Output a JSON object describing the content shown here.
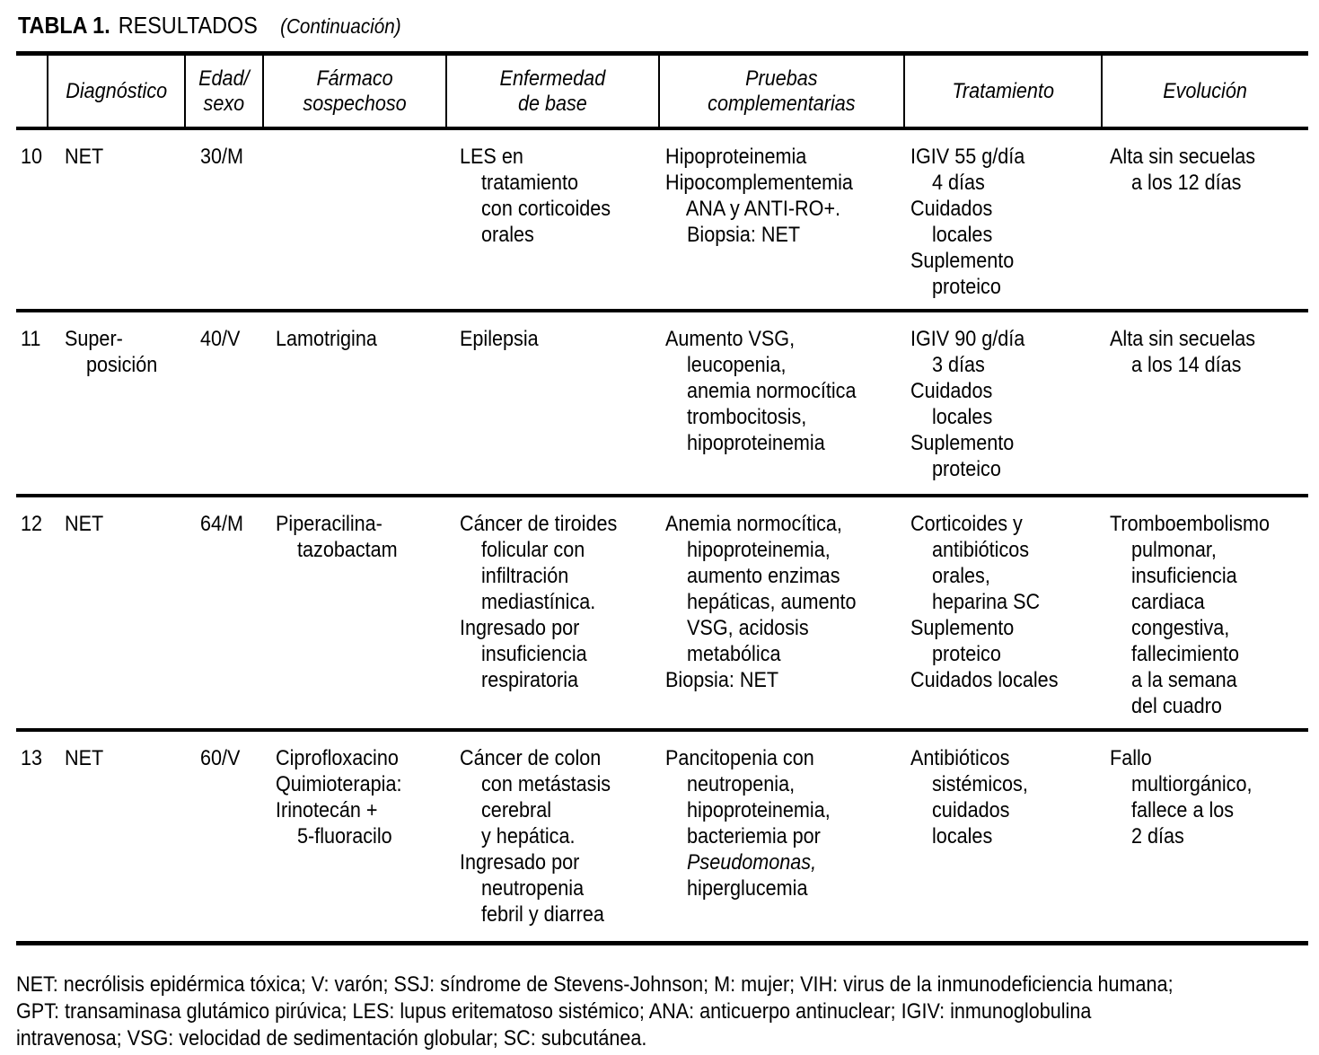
{
  "title": {
    "label_bold": "TABLA 1.",
    "label_regular": "RESULTADOS",
    "label_italic": "(Continuación)"
  },
  "table": {
    "columns": [
      "",
      "Diagnóstico",
      "Edad/\nsexo",
      "Fármaco\nsospechoso",
      "Enfermedad\nde base",
      "Pruebas\ncomplementarias",
      "Tratamiento",
      "Evolución"
    ],
    "rows": [
      {
        "num": "10",
        "diagnostico": [
          "NET"
        ],
        "edad_sexo": [
          "30/M"
        ],
        "farmaco": [],
        "enfermedad": [
          "LES en",
          "    tratamiento",
          "    con corticoides",
          "    orales"
        ],
        "pruebas": [
          "Hipoproteinemia",
          "Hipocomplementemia",
          "    ANA y ANTI-RO+.",
          "    Biopsia: NET"
        ],
        "tratamiento": [
          "IGIV 55 g/día",
          "    4 días",
          "Cuidados",
          "    locales",
          "Suplemento",
          "    proteico"
        ],
        "evolucion": [
          "Alta sin secuelas",
          "    a los 12 días"
        ]
      },
      {
        "num": "11",
        "diagnostico": [
          "Super-",
          "    posición"
        ],
        "edad_sexo": [
          "40/V"
        ],
        "farmaco": [
          "Lamotrigina"
        ],
        "enfermedad": [
          "Epilepsia"
        ],
        "pruebas": [
          "Aumento VSG,",
          "    leucopenia,",
          "    anemia normocítica",
          "    trombocitosis,",
          "    hipoproteinemia"
        ],
        "tratamiento": [
          "IGIV 90 g/día",
          "    3 días",
          "Cuidados",
          "    locales",
          "Suplemento",
          "    proteico"
        ],
        "evolucion": [
          "Alta sin secuelas",
          "    a los 14 días"
        ]
      },
      {
        "num": "12",
        "diagnostico": [
          "NET"
        ],
        "edad_sexo": [
          "64/M"
        ],
        "farmaco": [
          "Piperacilina-",
          "    tazobactam"
        ],
        "enfermedad": [
          "Cáncer de tiroides",
          "    folicular con",
          "    infiltración",
          "    mediastínica.",
          "Ingresado por",
          "    insuficiencia",
          "    respiratoria"
        ],
        "pruebas": [
          "Anemia normocítica,",
          "    hipoproteinemia,",
          "    aumento enzimas",
          "    hepáticas, aumento",
          "    VSG, acidosis",
          "    metabólica",
          "Biopsia: NET"
        ],
        "tratamiento": [
          "Corticoides y",
          "    antibióticos",
          "    orales,",
          "    heparina SC",
          "Suplemento",
          "    proteico",
          "Cuidados locales"
        ],
        "evolucion": [
          "Tromboembolismo",
          "    pulmonar,",
          "    insuficiencia",
          "    cardiaca",
          "    congestiva,",
          "    fallecimiento",
          "    a la semana",
          "    del cuadro"
        ]
      },
      {
        "num": "13",
        "diagnostico": [
          "NET"
        ],
        "edad_sexo": [
          "60/V"
        ],
        "farmaco": [
          "Ciprofloxacino",
          "Quimioterapia:",
          "Irinotecán +",
          "    5-fluoracilo"
        ],
        "enfermedad": [
          "Cáncer de colon",
          "    con metástasis",
          "    cerebral",
          "    y hepática.",
          "Ingresado por",
          "    neutropenia",
          "    febril y diarrea"
        ],
        "pruebas": [
          "Pancitopenia con",
          "    neutropenia,",
          "    hipoproteinemia,",
          "    bacteriemia por",
          {
            "text": "    Pseudomonas,",
            "italic": true
          },
          "    hiperglucemia"
        ],
        "tratamiento": [
          "Antibióticos",
          "    sistémicos,",
          "    cuidados",
          "    locales"
        ],
        "evolucion": [
          "Fallo",
          "    multiorgánico,",
          "    fallece a los",
          "    2 días"
        ]
      }
    ]
  },
  "footnote": {
    "lines": [
      "NET: necrólisis epidérmica tóxica; V: varón; SSJ: síndrome de Stevens-Johnson; M: mujer; VIH: virus de la inmunodeficiencia humana;",
      "GPT: transaminasa glutámico pirúvica; LES: lupus eritematoso sistémico; ANA: anticuerpo antinuclear; IGIV: inmunoglobulina",
      "intravenosa; VSG: velocidad de sedimentación globular; SC: subcutánea."
    ]
  },
  "colors": {
    "ink": "#000000",
    "paper": "#ffffff"
  }
}
